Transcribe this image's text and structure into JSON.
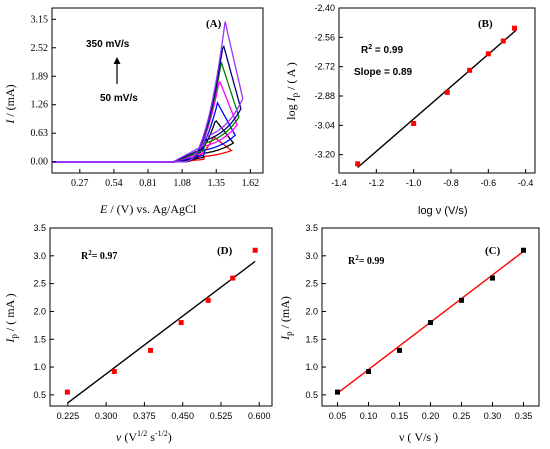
{
  "chart_data": [
    {
      "panel": "(A)",
      "type": "line",
      "xlabel_italic": "E",
      "xlabel_rest": " / (V) vs. Ag/AgCl",
      "ylabel_italic": "I",
      "ylabel_rest": " / (mA)",
      "x_ticks": [
        "0.27",
        "0.54",
        "0.81",
        "1.08",
        "1.35",
        "1.62"
      ],
      "y_ticks": [
        "0.00",
        "0.63",
        "1.26",
        "1.89",
        "2.52",
        "3.15"
      ],
      "xlim": [
        0.05,
        1.72
      ],
      "ylim": [
        -0.25,
        3.4
      ],
      "annotations": {
        "top": "350 mV/s",
        "bottom": "50 mV/s"
      },
      "series_colors": [
        "#ff0000",
        "#000000",
        "#0000ff",
        "#ff00ff",
        "#008000",
        "#000080",
        "#9933ff"
      ],
      "peak_currents": [
        0.55,
        0.92,
        1.3,
        1.8,
        2.2,
        2.6,
        3.1
      ]
    },
    {
      "panel": "(B)",
      "type": "scatter",
      "xlabel": "log ν (V/s)",
      "ylabel_pre": "log ",
      "ylabel_italic": "I",
      "ylabel_sub": "p",
      "ylabel_rest": " / ( A )",
      "x_ticks": [
        "-1.4",
        "-1.2",
        "-1.0",
        "-0.8",
        "-0.6",
        "-0.4"
      ],
      "y_ticks": [
        "-3.20",
        "-3.04",
        "-2.88",
        "-2.72",
        "-2.56",
        "-2.40"
      ],
      "xlim": [
        -1.4,
        -0.35
      ],
      "ylim": [
        -3.3,
        -2.4
      ],
      "r2_label": "R",
      "r2_sup": "2",
      "r2_value": " = 0.99",
      "slope_label": "Slope = 0.89",
      "x": [
        -1.3,
        -1.0,
        -0.82,
        -0.7,
        -0.6,
        -0.52,
        -0.46
      ],
      "y": [
        -3.25,
        -3.03,
        -2.86,
        -2.74,
        -2.65,
        -2.58,
        -2.51
      ],
      "fit": {
        "x": [
          -1.3,
          -0.45
        ],
        "y": [
          -3.27,
          -2.52
        ]
      },
      "marker_color": "#ff0000",
      "fit_color": "#000000"
    },
    {
      "panel": "(D)",
      "type": "scatter",
      "xlabel_italic": "ν",
      "xlabel_rest": "  (V",
      "xlabel_sup1": "1/2",
      "xlabel_mid": " s",
      "xlabel_sup2": "-1/2",
      "xlabel_end": ")",
      "ylabel_italic": "I",
      "ylabel_sub": "p",
      "ylabel_rest": " / ( mA )",
      "x_ticks": [
        "0.225",
        "0.300",
        "0.375",
        "0.450",
        "0.525",
        "0.600"
      ],
      "y_ticks": [
        "0.5",
        "1.0",
        "1.5",
        "2.0",
        "2.5",
        "3.0",
        "3.5"
      ],
      "xlim": [
        0.19,
        0.625
      ],
      "ylim": [
        0.3,
        3.5
      ],
      "r2_label": "R",
      "r2_sup": "2",
      "r2_value": "= 0.97",
      "x": [
        0.224,
        0.316,
        0.387,
        0.447,
        0.5,
        0.548,
        0.592
      ],
      "y": [
        0.55,
        0.92,
        1.3,
        1.8,
        2.2,
        2.6,
        3.1
      ],
      "fit": {
        "x": [
          0.224,
          0.592
        ],
        "y": [
          0.35,
          2.9
        ]
      },
      "marker_color": "#ff0000",
      "fit_color": "#000000"
    },
    {
      "panel": "(C)",
      "type": "scatter",
      "xlabel": "ν ( V/s )",
      "ylabel_italic": "I",
      "ylabel_sub": "p",
      "ylabel_rest": " / (mA)",
      "x_ticks": [
        "0.05",
        "0.10",
        "0.15",
        "0.20",
        "0.25",
        "0.30",
        "0.35"
      ],
      "y_ticks": [
        "0.5",
        "1.0",
        "1.5",
        "2.0",
        "2.5",
        "3.0",
        "3.5"
      ],
      "xlim": [
        0.025,
        0.375
      ],
      "ylim": [
        0.3,
        3.5
      ],
      "r2_label": "R",
      "r2_sup": "2",
      "r2_value": "= 0.99",
      "x": [
        0.05,
        0.1,
        0.15,
        0.2,
        0.25,
        0.3,
        0.35
      ],
      "y": [
        0.55,
        0.92,
        1.3,
        1.8,
        2.2,
        2.6,
        3.1
      ],
      "fit": {
        "x": [
          0.05,
          0.35
        ],
        "y": [
          0.53,
          3.08
        ]
      },
      "marker_color": "#000000",
      "fit_color": "#ff0000"
    }
  ]
}
